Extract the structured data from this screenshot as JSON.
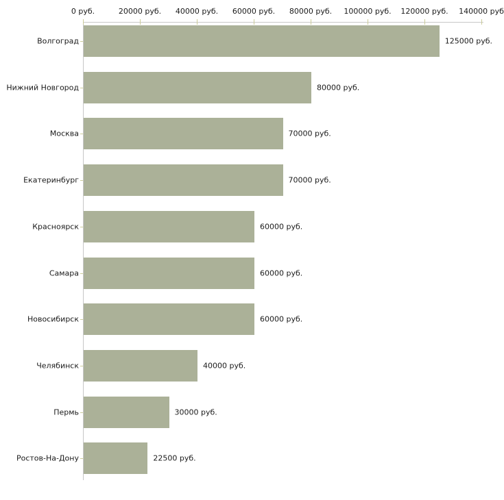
{
  "chart_data": {
    "type": "bar",
    "orientation": "horizontal",
    "title": "",
    "xlabel": "",
    "ylabel": "",
    "grid": false,
    "legend": false,
    "categories": [
      "Волгоград",
      "Нижний Новгород",
      "Москва",
      "Екатеринбург",
      "Красноярск",
      "Самара",
      "Новосибирск",
      "Челябинск",
      "Пермь",
      "Ростов-На-Дону"
    ],
    "values": [
      125000,
      80000,
      70000,
      70000,
      60000,
      60000,
      60000,
      40000,
      30000,
      22500
    ],
    "value_labels": [
      "125000 руб.",
      "80000 руб.",
      "70000 руб.",
      "70000 руб.",
      "60000 руб.",
      "60000 руб.",
      "60000 руб.",
      "40000 руб.",
      "30000 руб.",
      "22500 руб."
    ],
    "x_axis": {
      "position": "top",
      "min": 0,
      "max": 140000,
      "ticks": [
        0,
        20000,
        40000,
        60000,
        80000,
        100000,
        120000,
        140000
      ],
      "tick_labels": [
        "0 руб.",
        "20000 руб.",
        "40000 руб.",
        "60000 руб.",
        "80000 руб.",
        "100000 руб.",
        "120000 руб.",
        "140000 руб"
      ]
    },
    "colors": {
      "bar_fill": "#abb198",
      "axis_line": "#c6c6c6",
      "tick_mark": "#cccc99",
      "label_text": "#1a1a1a",
      "background": "#ffffff"
    }
  }
}
